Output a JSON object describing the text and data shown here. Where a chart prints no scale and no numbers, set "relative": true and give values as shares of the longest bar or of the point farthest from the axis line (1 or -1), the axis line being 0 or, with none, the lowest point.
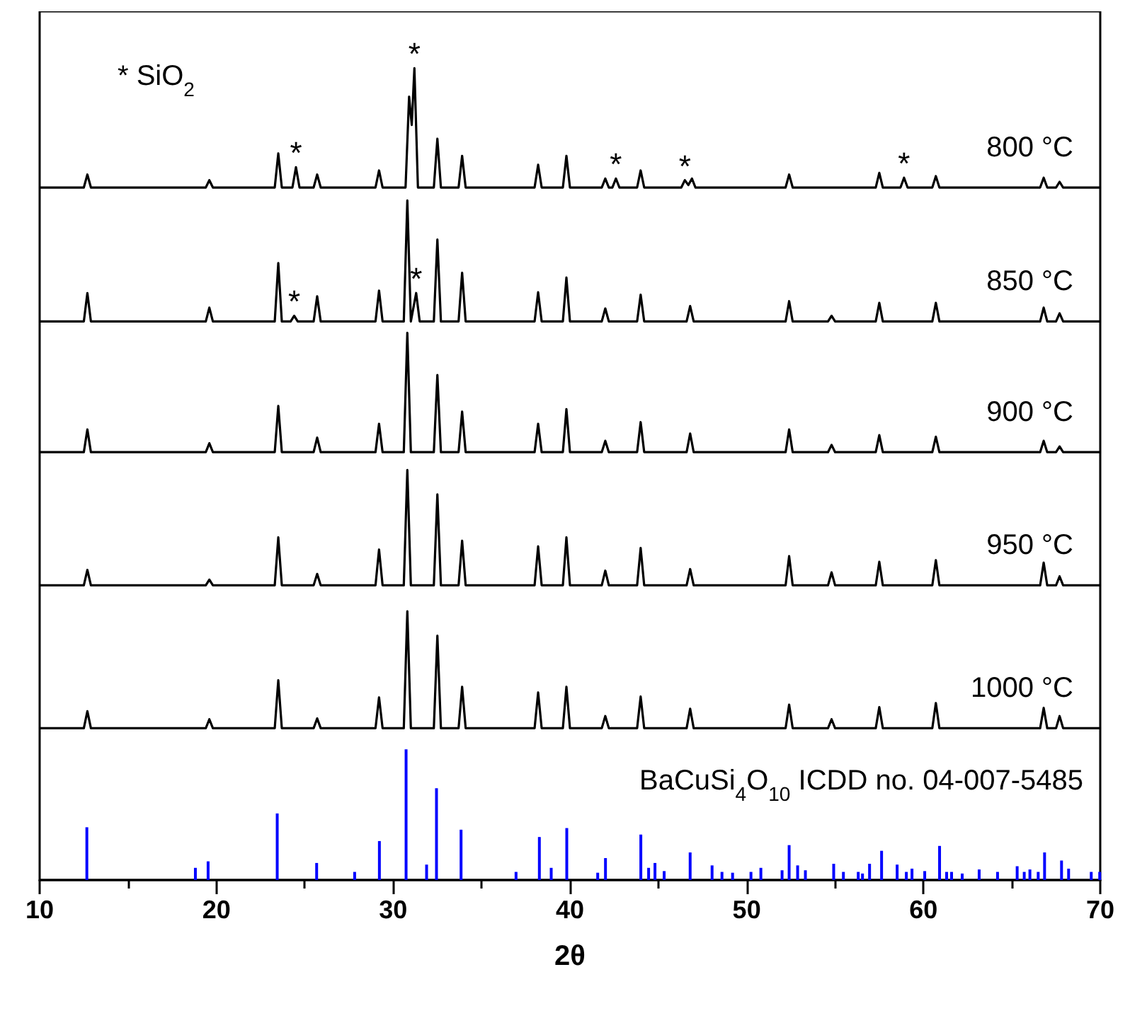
{
  "chart_data": {
    "type": "line",
    "relative": true,
    "xlabel": "2θ",
    "xlim": [
      10,
      70
    ],
    "xticks": [
      10,
      20,
      30,
      40,
      50,
      60,
      70
    ],
    "grid": false,
    "legend": false,
    "annotations": [
      "* SiO$_{2}$",
      "BaCuSi$_{4}$O$_{10}$ ICDD no. 04-007-5485",
      {
        "text": "*",
        "x": 31.2,
        "y": 1.0
      },
      {
        "text": "*",
        "x": 24.5,
        "y": 0.878
      },
      {
        "text": "*",
        "x": 42.6,
        "y": 0.864
      },
      {
        "text": "*",
        "x": 46.5,
        "y": 0.862
      },
      {
        "text": "*",
        "x": 58.9,
        "y": 0.865
      },
      {
        "text": "*",
        "x": 24.4,
        "y": 0.695
      },
      {
        "text": "*",
        "x": 31.3,
        "y": 0.723
      }
    ],
    "series": [
      {
        "name": "800 °C",
        "color": "#000000",
        "x": [
          10,
          12.5,
          12.7,
          12.9,
          19.4,
          19.6,
          19.8,
          23.3,
          23.5,
          23.7,
          24.3,
          24.5,
          24.7,
          25.5,
          25.7,
          25.9,
          29.0,
          29.2,
          29.4,
          30.7,
          30.9,
          31.05,
          31.2,
          31.4,
          32.3,
          32.5,
          32.7,
          33.7,
          33.9,
          34.1,
          38.0,
          38.2,
          38.4,
          39.6,
          39.8,
          40.0,
          41.8,
          42.0,
          42.2,
          42.4,
          42.6,
          42.8,
          43.8,
          44.0,
          44.2,
          46.3,
          46.5,
          46.7,
          46.9,
          47.1,
          52.2,
          52.4,
          52.6,
          57.3,
          57.5,
          57.7,
          58.7,
          58.9,
          59.1,
          60.5,
          60.7,
          60.9,
          66.6,
          66.8,
          67.0,
          67.5,
          67.7,
          67.9,
          70
        ],
        "values": [
          0.853,
          0.853,
          0.869,
          0.853,
          0.853,
          0.862,
          0.853,
          0.853,
          0.895,
          0.853,
          0.853,
          0.878,
          0.853,
          0.853,
          0.869,
          0.853,
          0.853,
          0.874,
          0.853,
          0.853,
          0.965,
          0.93,
          1.0,
          0.853,
          0.853,
          0.913,
          0.853,
          0.853,
          0.892,
          0.853,
          0.853,
          0.881,
          0.853,
          0.853,
          0.892,
          0.853,
          0.853,
          0.864,
          0.853,
          0.853,
          0.864,
          0.853,
          0.853,
          0.874,
          0.853,
          0.853,
          0.862,
          0.856,
          0.864,
          0.853,
          0.853,
          0.869,
          0.853,
          0.853,
          0.871,
          0.853,
          0.853,
          0.865,
          0.853,
          0.853,
          0.867,
          0.853,
          0.853,
          0.865,
          0.853,
          0.853,
          0.86,
          0.853,
          0.853
        ]
      },
      {
        "name": "850 °C",
        "color": "#000000",
        "x": [
          10,
          12.5,
          12.7,
          12.9,
          19.4,
          19.6,
          19.8,
          23.3,
          23.5,
          23.7,
          24.2,
          24.4,
          24.6,
          25.5,
          25.7,
          25.9,
          29.0,
          29.2,
          29.4,
          30.6,
          30.8,
          31.0,
          31.3,
          31.5,
          32.3,
          32.5,
          32.7,
          33.7,
          33.9,
          34.1,
          38.0,
          38.2,
          38.4,
          39.6,
          39.8,
          40.0,
          41.8,
          42.0,
          42.2,
          43.8,
          44.0,
          44.2,
          46.6,
          46.8,
          47.0,
          52.2,
          52.4,
          52.6,
          54.6,
          54.8,
          55.0,
          57.3,
          57.5,
          57.7,
          60.5,
          60.7,
          60.9,
          66.6,
          66.8,
          67.0,
          67.5,
          67.7,
          67.9,
          70
        ],
        "values": [
          0.688,
          0.688,
          0.723,
          0.688,
          0.688,
          0.705,
          0.688,
          0.688,
          0.76,
          0.688,
          0.688,
          0.695,
          0.688,
          0.688,
          0.719,
          0.688,
          0.688,
          0.726,
          0.688,
          0.688,
          0.837,
          0.688,
          0.723,
          0.688,
          0.688,
          0.789,
          0.688,
          0.688,
          0.748,
          0.688,
          0.688,
          0.724,
          0.688,
          0.688,
          0.742,
          0.688,
          0.688,
          0.704,
          0.688,
          0.688,
          0.721,
          0.688,
          0.688,
          0.707,
          0.688,
          0.688,
          0.713,
          0.688,
          0.688,
          0.695,
          0.688,
          0.688,
          0.711,
          0.688,
          0.688,
          0.711,
          0.688,
          0.688,
          0.705,
          0.688,
          0.688,
          0.698,
          0.688,
          0.688
        ]
      },
      {
        "name": "900 °C",
        "color": "#000000",
        "x": [
          10,
          12.5,
          12.7,
          12.9,
          19.4,
          19.6,
          19.8,
          23.3,
          23.5,
          23.7,
          25.5,
          25.7,
          25.9,
          29.0,
          29.2,
          29.4,
          30.6,
          30.8,
          31.0,
          32.3,
          32.5,
          32.7,
          33.7,
          33.9,
          34.1,
          38.0,
          38.2,
          38.4,
          39.6,
          39.8,
          40.0,
          41.8,
          42.0,
          42.2,
          43.8,
          44.0,
          44.2,
          46.6,
          46.8,
          47.0,
          52.2,
          52.4,
          52.6,
          54.6,
          54.8,
          55.0,
          57.3,
          57.5,
          57.7,
          60.5,
          60.7,
          60.9,
          66.6,
          66.8,
          67.0,
          67.5,
          67.7,
          67.9,
          70
        ],
        "values": [
          0.527,
          0.527,
          0.555,
          0.527,
          0.527,
          0.538,
          0.527,
          0.527,
          0.584,
          0.527,
          0.527,
          0.545,
          0.527,
          0.527,
          0.562,
          0.527,
          0.527,
          0.674,
          0.527,
          0.527,
          0.622,
          0.527,
          0.527,
          0.577,
          0.527,
          0.527,
          0.562,
          0.527,
          0.527,
          0.58,
          0.527,
          0.527,
          0.541,
          0.527,
          0.527,
          0.564,
          0.527,
          0.527,
          0.55,
          0.527,
          0.527,
          0.555,
          0.527,
          0.527,
          0.536,
          0.527,
          0.527,
          0.548,
          0.527,
          0.527,
          0.546,
          0.527,
          0.527,
          0.541,
          0.527,
          0.527,
          0.534,
          0.527,
          0.527
        ]
      },
      {
        "name": "950 °C",
        "color": "#000000",
        "x": [
          10,
          12.5,
          12.7,
          12.9,
          19.4,
          19.6,
          19.8,
          23.3,
          23.5,
          23.7,
          25.5,
          25.7,
          25.9,
          29.0,
          29.2,
          29.4,
          30.6,
          30.8,
          31.0,
          32.3,
          32.5,
          32.7,
          33.7,
          33.9,
          34.1,
          38.0,
          38.2,
          38.4,
          39.6,
          39.8,
          40.0,
          41.8,
          42.0,
          42.2,
          43.8,
          44.0,
          44.2,
          46.6,
          46.8,
          47.0,
          52.2,
          52.4,
          52.6,
          54.6,
          54.8,
          55.0,
          57.3,
          57.5,
          57.7,
          60.5,
          60.7,
          60.9,
          66.6,
          66.8,
          67.0,
          67.5,
          67.7,
          67.9,
          70
        ],
        "values": [
          0.363,
          0.363,
          0.382,
          0.363,
          0.363,
          0.37,
          0.363,
          0.363,
          0.422,
          0.363,
          0.363,
          0.377,
          0.363,
          0.363,
          0.407,
          0.363,
          0.363,
          0.505,
          0.363,
          0.363,
          0.475,
          0.363,
          0.363,
          0.418,
          0.363,
          0.363,
          0.411,
          0.363,
          0.363,
          0.422,
          0.363,
          0.363,
          0.381,
          0.363,
          0.363,
          0.409,
          0.363,
          0.363,
          0.383,
          0.363,
          0.363,
          0.399,
          0.363,
          0.363,
          0.379,
          0.363,
          0.363,
          0.392,
          0.363,
          0.363,
          0.394,
          0.363,
          0.363,
          0.391,
          0.363,
          0.363,
          0.374,
          0.363,
          0.363
        ]
      },
      {
        "name": "1000 °C",
        "color": "#000000",
        "x": [
          10,
          12.5,
          12.7,
          12.9,
          19.4,
          19.6,
          19.8,
          23.3,
          23.5,
          23.7,
          25.5,
          25.7,
          25.9,
          29.0,
          29.2,
          29.4,
          30.6,
          30.8,
          31.0,
          32.3,
          32.5,
          32.7,
          33.7,
          33.9,
          34.1,
          38.0,
          38.2,
          38.4,
          39.6,
          39.8,
          40.0,
          41.8,
          42.0,
          42.2,
          43.8,
          44.0,
          44.2,
          46.6,
          46.8,
          47.0,
          52.2,
          52.4,
          52.6,
          54.6,
          54.8,
          55.0,
          57.3,
          57.5,
          57.7,
          60.5,
          60.7,
          60.9,
          66.6,
          66.8,
          67.0,
          67.5,
          67.7,
          67.9,
          70
        ],
        "values": [
          0.187,
          0.187,
          0.208,
          0.187,
          0.187,
          0.198,
          0.187,
          0.187,
          0.246,
          0.187,
          0.187,
          0.199,
          0.187,
          0.187,
          0.225,
          0.187,
          0.187,
          0.331,
          0.187,
          0.187,
          0.301,
          0.187,
          0.187,
          0.238,
          0.187,
          0.187,
          0.231,
          0.187,
          0.187,
          0.238,
          0.187,
          0.187,
          0.202,
          0.187,
          0.187,
          0.226,
          0.187,
          0.187,
          0.211,
          0.187,
          0.187,
          0.216,
          0.187,
          0.187,
          0.198,
          0.187,
          0.187,
          0.213,
          0.187,
          0.187,
          0.218,
          0.187,
          0.187,
          0.212,
          0.187,
          0.187,
          0.202,
          0.187,
          0.187
        ]
      },
      {
        "type": "bar",
        "color": "#0000ff",
        "x": [
          12.67,
          18.81,
          19.53,
          23.44,
          25.67,
          27.82,
          29.22,
          30.73,
          31.89,
          32.45,
          33.84,
          36.95,
          38.27,
          38.94,
          39.82,
          41.57,
          42.01,
          44.01,
          44.45,
          44.81,
          45.33,
          46.8,
          48.04,
          48.6,
          49.2,
          50.24,
          50.8,
          52.0,
          52.4,
          52.88,
          53.32,
          54.92,
          55.47,
          56.31,
          56.55,
          56.95,
          57.63,
          58.51,
          59.03,
          59.35,
          60.07,
          60.91,
          61.31,
          61.59,
          62.19,
          63.15,
          64.19,
          65.3,
          65.7,
          66.02,
          66.49,
          66.85,
          67.81,
          68.21,
          69.49,
          69.97
        ],
        "values": [
          0.065,
          0.015,
          0.023,
          0.082,
          0.021,
          0.01,
          0.048,
          0.161,
          0.019,
          0.113,
          0.062,
          0.01,
          0.053,
          0.015,
          0.064,
          0.009,
          0.027,
          0.056,
          0.015,
          0.021,
          0.011,
          0.034,
          0.018,
          0.01,
          0.009,
          0.01,
          0.015,
          0.012,
          0.043,
          0.018,
          0.012,
          0.02,
          0.01,
          0.01,
          0.008,
          0.02,
          0.036,
          0.019,
          0.01,
          0.014,
          0.011,
          0.042,
          0.01,
          0.01,
          0.008,
          0.013,
          0.01,
          0.017,
          0.01,
          0.013,
          0.01,
          0.034,
          0.024,
          0.014,
          0.01,
          0.01
        ]
      }
    ]
  }
}
